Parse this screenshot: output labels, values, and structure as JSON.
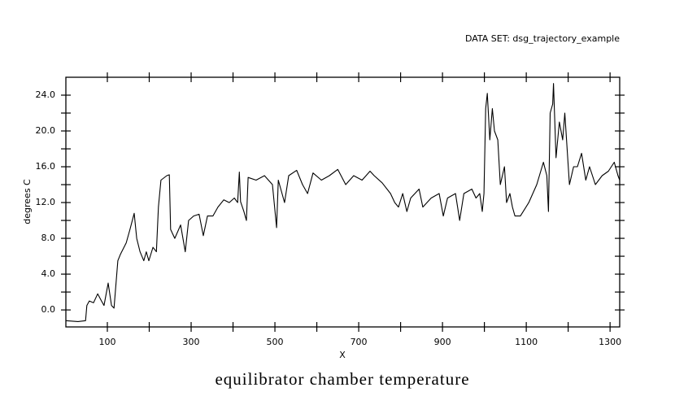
{
  "chart_data": {
    "type": "line",
    "title": "equilibrator chamber temperature",
    "subtitle": "DATA SET: dsg_trajectory_example",
    "xlabel": "X",
    "ylabel": "degrees C",
    "xlim": [
      1,
      1323
    ],
    "ylim": [
      -1.9,
      26
    ],
    "xticks": [
      100,
      300,
      500,
      700,
      900,
      1100,
      1300
    ],
    "xminor_ticks": [
      200,
      400,
      600,
      800,
      1000,
      1200
    ],
    "yticks": [
      {
        "value": 0,
        "label": "0.0"
      },
      {
        "value": 4,
        "label": "4.0"
      },
      {
        "value": 8,
        "label": "8.0"
      },
      {
        "value": 12,
        "label": "12.0"
      },
      {
        "value": 16,
        "label": "16.0"
      },
      {
        "value": 20,
        "label": "20.0"
      },
      {
        "value": 24,
        "label": "24.0"
      }
    ],
    "yminor_ticks": [
      2,
      6,
      10,
      14,
      18,
      22
    ],
    "grid": false,
    "x": [
      1,
      30,
      48,
      51,
      57,
      67,
      77,
      86,
      92,
      102,
      110,
      116,
      125,
      131,
      145,
      154,
      164,
      170,
      178,
      187,
      193,
      199,
      209,
      217,
      222,
      228,
      242,
      248,
      251,
      261,
      275,
      286,
      294,
      306,
      319,
      329,
      339,
      352,
      364,
      378,
      391,
      403,
      411,
      415,
      418,
      426,
      432,
      436,
      455,
      475,
      494,
      504,
      508,
      523,
      533,
      552,
      566,
      578,
      591,
      611,
      630,
      650,
      669,
      688,
      708,
      727,
      737,
      756,
      776,
      786,
      795,
      805,
      815,
      824,
      844,
      853,
      873,
      892,
      902,
      912,
      931,
      941,
      951,
      970,
      980,
      989,
      995,
      999,
      1003,
      1007,
      1013,
      1019,
      1024,
      1032,
      1038,
      1048,
      1053,
      1061,
      1067,
      1073,
      1086,
      1106,
      1125,
      1141,
      1149,
      1153,
      1157,
      1163,
      1165,
      1171,
      1179,
      1187,
      1192,
      1203,
      1213,
      1222,
      1232,
      1242,
      1251,
      1265,
      1281,
      1296,
      1310,
      1319,
      1323
    ],
    "series": [
      {
        "name": "equilibrator chamber temperature",
        "color": "#000000",
        "values": [
          -1.2,
          -1.3,
          -1.2,
          0.5,
          1.0,
          0.8,
          1.8,
          1.0,
          0.5,
          3.0,
          0.5,
          0.2,
          5.5,
          6.2,
          7.5,
          9.0,
          10.8,
          8.0,
          6.5,
          5.5,
          6.5,
          5.5,
          7.0,
          6.5,
          11.5,
          14.5,
          15.0,
          15.1,
          9.0,
          8.0,
          9.5,
          6.5,
          10.0,
          10.5,
          10.7,
          8.3,
          10.5,
          10.5,
          11.5,
          12.3,
          12.0,
          12.5,
          12.0,
          15.4,
          12.1,
          11.0,
          10.0,
          14.8,
          14.5,
          15.0,
          14.0,
          9.2,
          14.5,
          12.0,
          15.0,
          15.6,
          14.0,
          13.0,
          15.3,
          14.5,
          15.0,
          15.7,
          14.0,
          15.0,
          14.5,
          15.5,
          15.0,
          14.2,
          13.0,
          12.0,
          11.5,
          13.0,
          11.0,
          12.5,
          13.5,
          11.5,
          12.5,
          13.0,
          10.5,
          12.5,
          13.0,
          10.0,
          13.0,
          13.5,
          12.5,
          13.0,
          11.0,
          13.0,
          22.5,
          24.2,
          19.0,
          22.5,
          20.0,
          19.0,
          14.0,
          16.0,
          12.0,
          13.0,
          11.5,
          10.5,
          10.5,
          12.0,
          14.0,
          16.5,
          15.0,
          11.0,
          22.0,
          23.0,
          25.3,
          17.0,
          21.0,
          19.0,
          22.0,
          14.0,
          16.0,
          16.0,
          17.5,
          14.5,
          16.0,
          14.0,
          15.0,
          15.5,
          16.5,
          15.0,
          14.5
        ]
      }
    ]
  }
}
